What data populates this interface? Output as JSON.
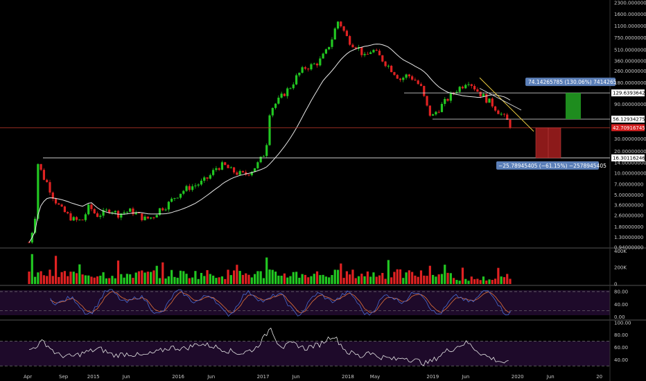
{
  "chart_data": [
    {
      "type": "candlestick",
      "panel": "price",
      "y_scale": "log",
      "ylim": [
        0.94,
        2300
      ],
      "y_ticks": [
        "2300.00000000",
        "1600.00000000",
        "1100.00000000",
        "750.00000000",
        "510.00000000",
        "360.00000000",
        "260.00000000",
        "180.00000000",
        "90.00000000",
        "30.00000000",
        "20.00000000",
        "14.00000000",
        "10.00000000",
        "7.00000000",
        "5.00000000",
        "3.60000000",
        "2.60000000",
        "1.80000000",
        "1.30000000",
        "0.94000000"
      ],
      "y_tick_values": [
        2300,
        1600,
        1100,
        750,
        510,
        360,
        260,
        180,
        90,
        30,
        20,
        14,
        10,
        7,
        5,
        3.6,
        2.6,
        1.8,
        1.3,
        0.94
      ],
      "x_labels": [
        "Apr",
        "Sep",
        "2015",
        "Jun",
        "2016",
        "Jun",
        "2017",
        "Jun",
        "2018",
        "May",
        "2019",
        "Jun",
        "2020",
        "Jun",
        "20"
      ],
      "x_label_positions_months": [
        0,
        5,
        9,
        14,
        21,
        26,
        33,
        38,
        45,
        49,
        57,
        62,
        69,
        74,
        81
      ],
      "close_series": [
        {
          "m": 0,
          "v": 1.1
        },
        {
          "m": 0.8,
          "v": 2.2
        },
        {
          "m": 1.3,
          "v": 16.0
        },
        {
          "m": 1.8,
          "v": 9.5
        },
        {
          "m": 2.5,
          "v": 7.5
        },
        {
          "m": 3.5,
          "v": 4.5
        },
        {
          "m": 4.5,
          "v": 3.2
        },
        {
          "m": 5.5,
          "v": 2.6
        },
        {
          "m": 6.5,
          "v": 2.2
        },
        {
          "m": 7.5,
          "v": 2.2
        },
        {
          "m": 8.5,
          "v": 3.5
        },
        {
          "m": 9.5,
          "v": 2.6
        },
        {
          "m": 10.5,
          "v": 2.8
        },
        {
          "m": 11.5,
          "v": 3.2
        },
        {
          "m": 12.5,
          "v": 2.7
        },
        {
          "m": 13.5,
          "v": 2.9
        },
        {
          "m": 14.5,
          "v": 3.0
        },
        {
          "m": 15.5,
          "v": 2.6
        },
        {
          "m": 16.5,
          "v": 2.3
        },
        {
          "m": 17.5,
          "v": 2.5
        },
        {
          "m": 18.5,
          "v": 3.2
        },
        {
          "m": 19.5,
          "v": 3.6
        },
        {
          "m": 20.5,
          "v": 4.6
        },
        {
          "m": 21.5,
          "v": 5.5
        },
        {
          "m": 22.5,
          "v": 6.3
        },
        {
          "m": 23.5,
          "v": 6.8
        },
        {
          "m": 24.5,
          "v": 7.5
        },
        {
          "m": 25.5,
          "v": 9.0
        },
        {
          "m": 26.5,
          "v": 12.0
        },
        {
          "m": 27.5,
          "v": 13.0
        },
        {
          "m": 28.5,
          "v": 11.0
        },
        {
          "m": 29.5,
          "v": 10.0
        },
        {
          "m": 30.5,
          "v": 9.5
        },
        {
          "m": 31.5,
          "v": 11.0
        },
        {
          "m": 32.5,
          "v": 14.0
        },
        {
          "m": 33.5,
          "v": 21.0
        },
        {
          "m": 34.0,
          "v": 70.0
        },
        {
          "m": 34.5,
          "v": 85.0
        },
        {
          "m": 35.0,
          "v": 95.0
        },
        {
          "m": 36.0,
          "v": 125.0
        },
        {
          "m": 37.0,
          "v": 160.0
        },
        {
          "m": 38.0,
          "v": 230.0
        },
        {
          "m": 39.0,
          "v": 290.0
        },
        {
          "m": 40.0,
          "v": 310.0
        },
        {
          "m": 41.0,
          "v": 350.0
        },
        {
          "m": 42.0,
          "v": 480.0
        },
        {
          "m": 43.0,
          "v": 800.0
        },
        {
          "m": 43.6,
          "v": 1300.0
        },
        {
          "m": 44.2,
          "v": 1100.0
        },
        {
          "m": 44.8,
          "v": 800.0
        },
        {
          "m": 45.5,
          "v": 650.0
        },
        {
          "m": 46.5,
          "v": 560.0
        },
        {
          "m": 47.5,
          "v": 400.0
        },
        {
          "m": 48.5,
          "v": 520.0
        },
        {
          "m": 49.5,
          "v": 420.0
        },
        {
          "m": 50.5,
          "v": 330.0
        },
        {
          "m": 51.5,
          "v": 260.0
        },
        {
          "m": 52.5,
          "v": 200.0
        },
        {
          "m": 53.5,
          "v": 230.0
        },
        {
          "m": 54.5,
          "v": 200.0
        },
        {
          "m": 55.5,
          "v": 150.0
        },
        {
          "m": 56.0,
          "v": 100.0
        },
        {
          "m": 56.5,
          "v": 70.0
        },
        {
          "m": 57.0,
          "v": 60.0
        },
        {
          "m": 57.5,
          "v": 70.0
        },
        {
          "m": 58.5,
          "v": 90.0
        },
        {
          "m": 59.5,
          "v": 115.0
        },
        {
          "m": 60.5,
          "v": 145.0
        },
        {
          "m": 61.5,
          "v": 170.0
        },
        {
          "m": 62.0,
          "v": 200.0
        },
        {
          "m": 62.5,
          "v": 175.0
        },
        {
          "m": 63.5,
          "v": 135.0
        },
        {
          "m": 64.5,
          "v": 110.0
        },
        {
          "m": 65.5,
          "v": 90.0
        },
        {
          "m": 66.5,
          "v": 70.0
        },
        {
          "m": 67.5,
          "v": 55.0
        },
        {
          "m": 68.3,
          "v": 42.7
        }
      ],
      "annotations": {
        "upper_resistance": "129.63936428",
        "mid_support": "56.12934275",
        "current_price": "42.70916745",
        "lower_support": "16.30116246",
        "upper_box_label": "74.14265785 (130.06%) 7414265",
        "lower_box_label": "−25.78945405 (−61.15%) −2578945405"
      },
      "levels": {
        "upper_resistance": 129.63936428,
        "mid_support": 56.12934275,
        "current_price": 42.70916745,
        "lower_support": 16.30116246
      },
      "grid": false
    },
    {
      "type": "bar",
      "panel": "volume",
      "y_ticks": [
        "400K",
        "200K",
        "0"
      ],
      "y_tick_values": [
        400000,
        200000,
        0
      ],
      "ylim": [
        0,
        420000
      ]
    },
    {
      "type": "line",
      "panel": "stochastic_rsi",
      "y_ticks": [
        "80.00",
        "40.00",
        "0.00"
      ],
      "y_tick_values": [
        80,
        40,
        0
      ],
      "ylim": [
        -5,
        95
      ],
      "bands": [
        80,
        20
      ],
      "colors": {
        "k": "#4a6cd4",
        "d": "#e8743b"
      }
    },
    {
      "type": "line",
      "panel": "rsi",
      "y_ticks": [
        "100.00",
        "80.00",
        "60.00",
        "40.00"
      ],
      "y_tick_values": [
        100,
        80,
        60,
        40
      ],
      "ylim": [
        28,
        102
      ],
      "bands": [
        70,
        30
      ],
      "series": [
        {
          "m": 0,
          "v": 55
        },
        {
          "m": 2,
          "v": 70
        },
        {
          "m": 4,
          "v": 48
        },
        {
          "m": 6,
          "v": 45
        },
        {
          "m": 8,
          "v": 52
        },
        {
          "m": 10,
          "v": 58
        },
        {
          "m": 12,
          "v": 47
        },
        {
          "m": 14,
          "v": 50
        },
        {
          "m": 16,
          "v": 46
        },
        {
          "m": 18,
          "v": 52
        },
        {
          "m": 20,
          "v": 60
        },
        {
          "m": 22,
          "v": 58
        },
        {
          "m": 24,
          "v": 66
        },
        {
          "m": 26,
          "v": 62
        },
        {
          "m": 28,
          "v": 55
        },
        {
          "m": 30,
          "v": 50
        },
        {
          "m": 32,
          "v": 58
        },
        {
          "m": 33.5,
          "v": 80
        },
        {
          "m": 34.2,
          "v": 94
        },
        {
          "m": 35,
          "v": 70
        },
        {
          "m": 36,
          "v": 60
        },
        {
          "m": 37,
          "v": 66
        },
        {
          "m": 38,
          "v": 64
        },
        {
          "m": 39,
          "v": 58
        },
        {
          "m": 40,
          "v": 62
        },
        {
          "m": 41,
          "v": 64
        },
        {
          "m": 42,
          "v": 72
        },
        {
          "m": 43,
          "v": 80
        },
        {
          "m": 44,
          "v": 66
        },
        {
          "m": 45,
          "v": 52
        },
        {
          "m": 46,
          "v": 50
        },
        {
          "m": 47,
          "v": 44
        },
        {
          "m": 48,
          "v": 55
        },
        {
          "m": 49,
          "v": 46
        },
        {
          "m": 50,
          "v": 44
        },
        {
          "m": 51,
          "v": 42
        },
        {
          "m": 52,
          "v": 40
        },
        {
          "m": 53,
          "v": 45
        },
        {
          "m": 54,
          "v": 40
        },
        {
          "m": 55,
          "v": 38
        },
        {
          "m": 56,
          "v": 34
        },
        {
          "m": 57,
          "v": 38
        },
        {
          "m": 58,
          "v": 46
        },
        {
          "m": 59,
          "v": 54
        },
        {
          "m": 60,
          "v": 58
        },
        {
          "m": 61,
          "v": 64
        },
        {
          "m": 62,
          "v": 68
        },
        {
          "m": 63,
          "v": 58
        },
        {
          "m": 64,
          "v": 50
        },
        {
          "m": 65,
          "v": 44
        },
        {
          "m": 66,
          "v": 40
        },
        {
          "m": 67,
          "v": 36
        },
        {
          "m": 68,
          "v": 34
        }
      ]
    }
  ],
  "colors": {
    "up": "#22c722",
    "down": "#e02222",
    "ma": "#e8e8e8",
    "current_price_line": "#c0392b",
    "level_line": "#e8e8e8",
    "trend_line": "#f0d040",
    "upper_box": "#1e8c1e",
    "lower_box": "#8c1a1a",
    "label_bg": "#5b7fb8",
    "indicator_bg": "#1e0a2a",
    "background": "#000000"
  }
}
